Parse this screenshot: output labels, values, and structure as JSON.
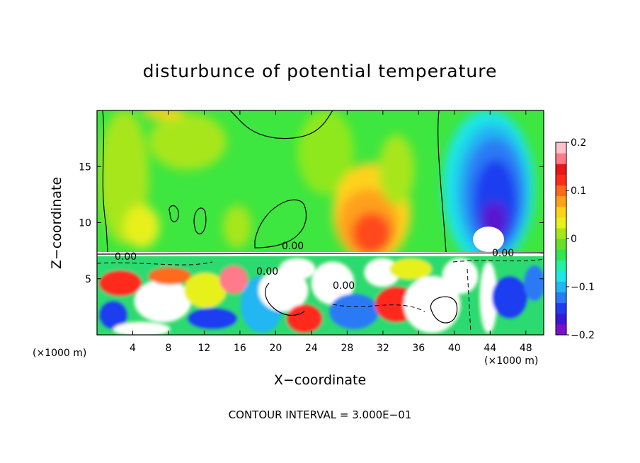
{
  "chart_data": {
    "type": "heatmap",
    "title": "disturbunce of potential temperature",
    "xlabel": "X−coordinate",
    "ylabel": "Z−coordinate",
    "x_unit_left": "(×1000 m)",
    "x_unit_right": "(×1000 m)",
    "xlim": [
      0,
      50
    ],
    "ylim": [
      0,
      20
    ],
    "x_ticks": [
      4,
      8,
      12,
      16,
      20,
      24,
      28,
      32,
      36,
      40,
      44,
      48
    ],
    "x_tick_labels": [
      "4",
      "8",
      "12",
      "16",
      "20",
      "24",
      "28",
      "32",
      "36",
      "40",
      "44",
      "48"
    ],
    "y_ticks": [
      5,
      10,
      15
    ],
    "y_tick_labels": [
      "5",
      "10",
      "15"
    ],
    "colorbar": {
      "min": -0.2,
      "max": 0.2,
      "tick_values": [
        0.2,
        0.1,
        0,
        -0.1,
        -0.2
      ],
      "tick_labels": [
        "0.2",
        "0.1",
        "0",
        "−0.1",
        "−0.2"
      ],
      "colors": [
        "#7a10c8",
        "#3a18d8",
        "#1f3cf0",
        "#2a7af5",
        "#22b6f2",
        "#1ee6e6",
        "#24f0a0",
        "#2ee650",
        "#66e02a",
        "#a8e61c",
        "#e8f01c",
        "#ffd21a",
        "#ffa01a",
        "#ff6a1a",
        "#ff2a1a",
        "#e81818",
        "#ff7a8a",
        "#ffc0c8"
      ]
    },
    "contour_labels": [
      "0.00",
      "0.00",
      "0.00",
      "0.00",
      "0.00"
    ],
    "contour_interval_text": "CONTOUR INTERVAL = 3.000E−01"
  }
}
